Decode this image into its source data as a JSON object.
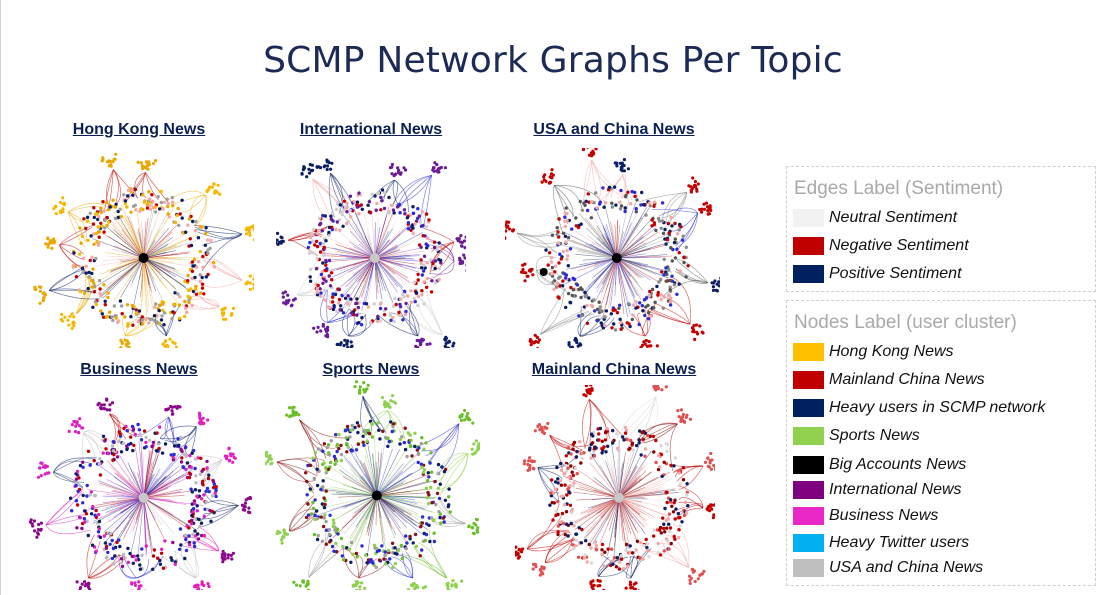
{
  "title": "SCMP Network Graphs Per Topic",
  "graphs": [
    {
      "label": "Hong Kong News",
      "palette": [
        "#f5b800",
        "#e8a800",
        "#0b1f66",
        "#c40000",
        "#f4a7a7",
        "#9e9e9e"
      ],
      "hub": "#000000",
      "hubs": 1
    },
    {
      "label": "International News",
      "palette": [
        "#6a1b9a",
        "#0b1f66",
        "#2b2bd9",
        "#c40000",
        "#f4a7a7",
        "#cfcfcf"
      ],
      "hub": "#c8c8c8",
      "hubs": 1
    },
    {
      "label": "USA and China News",
      "palette": [
        "#c40000",
        "#0b1f66",
        "#555555",
        "#8a8a8a",
        "#2b2bd9",
        "#f4a7a7"
      ],
      "hub": "#000000",
      "hubs": 2
    },
    {
      "label": "Business News",
      "palette": [
        "#e020c0",
        "#8b0a8b",
        "#2b2bd9",
        "#0b1f66",
        "#c40000",
        "#bdbdbd"
      ],
      "hub": "#c8c8c8",
      "hubs": 1
    },
    {
      "label": "Sports News",
      "palette": [
        "#8fd14f",
        "#6bbf2a",
        "#0b1f66",
        "#8b1010",
        "#2b2bd9",
        "#9e9e9e"
      ],
      "hub": "#000000",
      "hubs": 1
    },
    {
      "label": "Mainland China News",
      "palette": [
        "#c40000",
        "#e05050",
        "#f4a7a7",
        "#0b1f66",
        "#d9d9d9",
        "#8b0000"
      ],
      "hub": "#c8c8c8",
      "hubs": 1
    }
  ],
  "legend": {
    "edges": {
      "title": "Edges Label (Sentiment)",
      "items": [
        {
          "label": "Neutral Sentiment",
          "color": "#f2f2f2"
        },
        {
          "label": "Negative Sentiment",
          "color": "#c00000"
        },
        {
          "label": "Positive Sentiment",
          "color": "#002060"
        }
      ]
    },
    "nodes": {
      "title": "Nodes Label (user cluster)",
      "items": [
        {
          "label": "Hong Kong News",
          "color": "#ffc000"
        },
        {
          "label": "Mainland China News",
          "color": "#c00000"
        },
        {
          "label": "Heavy users in SCMP network",
          "color": "#002060"
        },
        {
          "label": "Sports News",
          "color": "#92d050"
        },
        {
          "label": "Big Accounts News",
          "color": "#000000"
        },
        {
          "label": "International News",
          "color": "#7f007f"
        },
        {
          "label": "Business News",
          "color": "#ea28c8"
        },
        {
          "label": "Heavy Twitter users",
          "color": "#00b0f0"
        },
        {
          "label": "USA and China News",
          "color": "#bfbfbf"
        }
      ]
    }
  }
}
